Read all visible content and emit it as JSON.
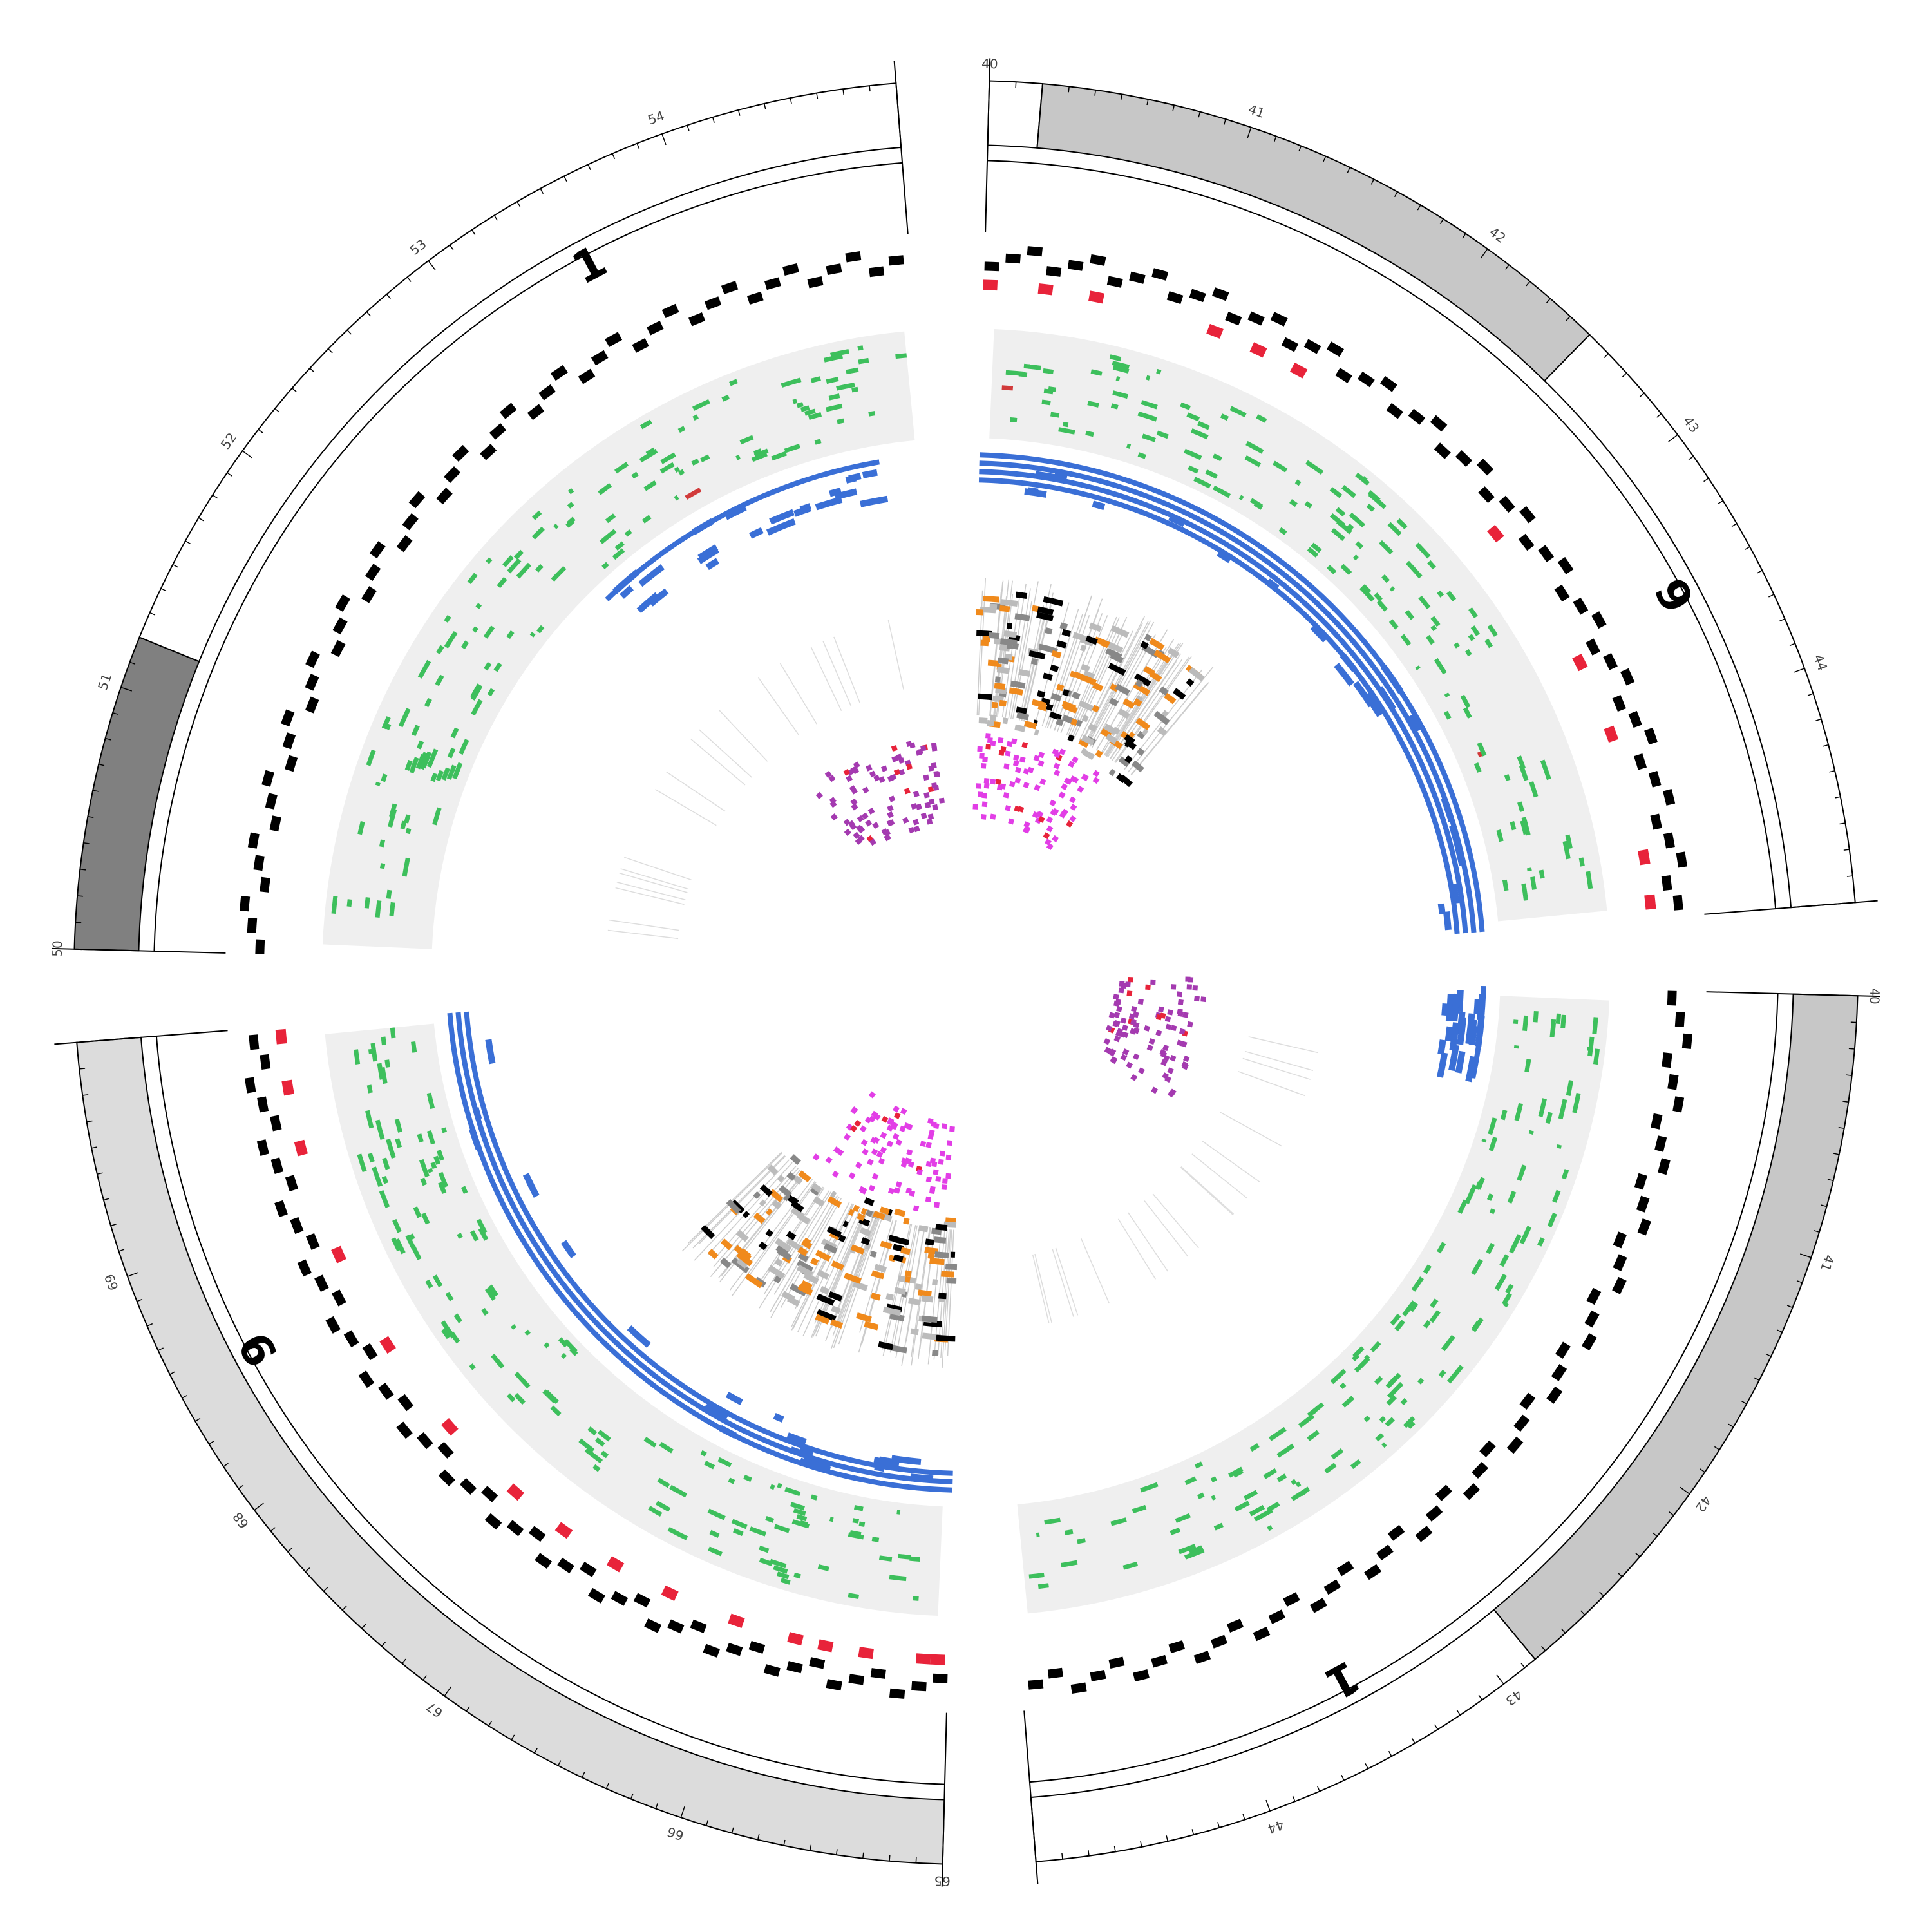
{
  "diagram": {
    "type": "circos",
    "segments": [
      {
        "chromosome": "9",
        "start": 40,
        "end": 44.9,
        "ticks": [
          "40",
          "41",
          "42",
          "43",
          "44"
        ],
        "bands": [
          {
            "start": 40.0,
            "end": 40.2,
            "shade": "white"
          },
          {
            "start": 40.2,
            "end": 42.5,
            "shade": "#c7c7c7"
          },
          {
            "start": 42.5,
            "end": 44.9,
            "shade": "white"
          }
        ],
        "density": [
          0.5,
          0.8,
          0.6,
          0.9,
          0.4,
          0.7,
          0.3,
          0.8,
          0.6,
          0.5,
          0.9,
          0.7,
          0.4,
          0.6,
          0.8,
          0.5,
          0.7,
          0.9,
          0.3,
          0.6,
          0.8,
          0.5,
          0.7,
          0.4,
          0.9,
          0.6,
          0.5,
          0.8,
          0.7,
          0.4,
          0.6,
          0.9,
          0.5,
          0.7,
          0.3,
          0.8,
          0.6,
          0.5,
          0.9,
          0.7,
          0.4,
          0.6,
          0.8,
          0.5,
          0.7,
          0.9,
          0.4,
          0.6,
          0.5,
          0.8
        ],
        "hotspots": [
          40.03,
          40.3,
          40.55,
          41.15,
          41.38,
          41.6,
          42.85,
          43.6,
          43.98,
          44.6,
          44.82
        ],
        "blue_tracks": 4,
        "blue_arc": [
          40.0,
          44.9
        ],
        "orange_arc": [
          40.0,
          42.3
        ],
        "pink_arc": [
          40.1,
          42.0
        ]
      },
      {
        "chromosome": "1",
        "start": 40,
        "end": 44.9,
        "ticks": [
          "40",
          "41",
          "42",
          "43",
          "44"
        ],
        "bands": [
          {
            "start": 40.0,
            "end": 42.85,
            "shade": "#c7c7c7"
          },
          {
            "start": 42.85,
            "end": 44.9,
            "shade": "white"
          }
        ],
        "density": [
          0.7,
          0.5,
          0.9,
          0.6,
          0.4,
          0.8,
          0.7,
          0.5,
          0.6,
          0.9,
          0.5,
          0.7,
          0.8,
          0.4,
          0.6,
          0.9,
          0.7,
          0.5,
          0.8,
          0.6,
          0.4,
          0.7,
          0.9,
          0.5,
          0.6,
          0.8,
          0.7,
          0.5,
          0.9,
          0.4,
          0.6,
          0.8,
          0.5,
          0.7,
          0.9,
          0.6,
          0.4,
          0.8,
          0.7,
          0.5,
          0.6,
          0.9,
          0.5,
          0.7,
          0.8,
          0.4,
          0.6,
          0.9,
          0.7,
          0.5
        ],
        "hotspots": [],
        "blue_tracks": 1,
        "blue_arc": [
          40.0,
          40.6
        ],
        "orange_arc": null,
        "pink_arc": [
          40.0,
          41.8
        ]
      },
      {
        "chromosome": "9",
        "start": 65,
        "end": 69.9,
        "ticks": [
          "65",
          "66",
          "67",
          "68",
          "69"
        ],
        "bands": [
          {
            "start": 65.0,
            "end": 69.9,
            "shade": "#dcdcdc"
          }
        ],
        "density": [
          0.6,
          0.8,
          0.5,
          0.9,
          0.7,
          0.4,
          0.6,
          0.8,
          0.5,
          0.7,
          0.9,
          0.6,
          0.4,
          0.8,
          0.5,
          0.7,
          0.6,
          0.9,
          0.5,
          0.8,
          0.4,
          0.7,
          0.6,
          0.9,
          0.5,
          0.8,
          0.7,
          0.4,
          0.6,
          0.9,
          0.5,
          0.8,
          0.7,
          0.6,
          0.4,
          0.9,
          0.5,
          0.7,
          0.8,
          0.6,
          0.5,
          0.9,
          0.4,
          0.7,
          0.6,
          0.8,
          0.5,
          0.9,
          0.7,
          0.6
        ],
        "hotspots": [
          65.05,
          65.12,
          65.4,
          65.6,
          65.75,
          66.05,
          66.4,
          66.7,
          67.0,
          67.3,
          67.75,
          68.25,
          68.75,
          69.3,
          69.6,
          69.85
        ],
        "blue_tracks": 3,
        "blue_arc": [
          65.0,
          69.9
        ],
        "orange_arc": [
          65.0,
          67.6
        ],
        "pink_arc": [
          65.2,
          67.3
        ]
      },
      {
        "chromosome": "1",
        "start": 50,
        "end": 54.9,
        "ticks": [
          "50",
          "51",
          "52",
          "53",
          "54"
        ],
        "bands": [
          {
            "start": 50.0,
            "end": 51.2,
            "shade": "#808080"
          },
          {
            "start": 51.2,
            "end": 54.9,
            "shade": "white"
          }
        ],
        "density": [
          0.5,
          0.7,
          0.9,
          0.6,
          0.4,
          0.8,
          0.6,
          0.5,
          0.9,
          0.7,
          0.4,
          0.6,
          0.8,
          0.5,
          0.7,
          0.9,
          0.6,
          0.4,
          0.8,
          0.5,
          0.7,
          0.6,
          0.9,
          0.4,
          0.8,
          0.5,
          0.7,
          0.6,
          0.9,
          0.5,
          0.4,
          0.8,
          0.7,
          0.6,
          0.5,
          0.9,
          0.7,
          0.4,
          0.6,
          0.8,
          0.5,
          0.7,
          0.9,
          0.6,
          0.4,
          0.8,
          0.5,
          0.7,
          0.6,
          0.9
        ],
        "hotspots": [],
        "blue_tracks": 1,
        "blue_arc": [
          52.6,
          54.6
        ],
        "orange_arc": null,
        "pink_arc": [
          52.8,
          54.7
        ]
      }
    ]
  }
}
